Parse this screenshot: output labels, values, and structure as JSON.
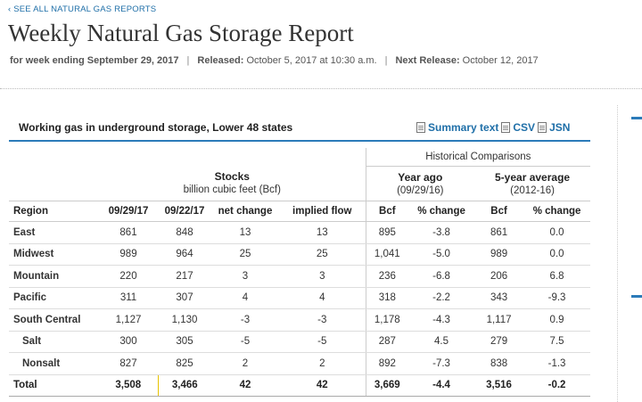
{
  "nav": {
    "back_link": "‹ SEE ALL NATURAL GAS REPORTS"
  },
  "page": {
    "title": "Weekly Natural Gas Storage Report",
    "week_label": "for week ending September 29, 2017",
    "sep": "|",
    "released_label": "Released:",
    "released_value": "October 5, 2017 at 10:30 a.m.",
    "next_label": "Next Release:",
    "next_value": "October 12, 2017"
  },
  "panel": {
    "title": "Working gas in underground storage, Lower 48 states",
    "links": [
      {
        "label": "Summary text",
        "icon": "document-icon"
      },
      {
        "label": "CSV",
        "icon": "document-icon"
      },
      {
        "label": "JSN",
        "icon": "document-icon"
      }
    ]
  },
  "table": {
    "historical_label": "Historical Comparisons",
    "stocks_title": "Stocks",
    "stocks_sub": "billion cubic feet (Bcf)",
    "year_ago_title": "Year ago",
    "year_ago_sub": "(09/29/16)",
    "five_year_title": "5-year average",
    "five_year_sub": "(2012-16)",
    "columns": [
      "Region",
      "09/29/17",
      "09/22/17",
      "net change",
      "implied flow",
      "Bcf",
      "% change",
      "Bcf",
      "% change"
    ],
    "rows": [
      {
        "region": "East",
        "c1": "861",
        "c2": "848",
        "net": "13",
        "flow": "13",
        "ya_bcf": "895",
        "ya_pct": "-3.8",
        "fy_bcf": "861",
        "fy_pct": "0.0"
      },
      {
        "region": "Midwest",
        "c1": "989",
        "c2": "964",
        "net": "25",
        "flow": "25",
        "ya_bcf": "1,041",
        "ya_pct": "-5.0",
        "fy_bcf": "989",
        "fy_pct": "0.0"
      },
      {
        "region": "Mountain",
        "c1": "220",
        "c2": "217",
        "net": "3",
        "flow": "3",
        "ya_bcf": "236",
        "ya_pct": "-6.8",
        "fy_bcf": "206",
        "fy_pct": "6.8"
      },
      {
        "region": "Pacific",
        "c1": "311",
        "c2": "307",
        "net": "4",
        "flow": "4",
        "ya_bcf": "318",
        "ya_pct": "-2.2",
        "fy_bcf": "343",
        "fy_pct": "-9.3"
      },
      {
        "region": "South Central",
        "c1": "1,127",
        "c2": "1,130",
        "net": "-3",
        "flow": "-3",
        "ya_bcf": "1,178",
        "ya_pct": "-4.3",
        "fy_bcf": "1,117",
        "fy_pct": "0.9"
      },
      {
        "region": "Salt",
        "c1": "300",
        "c2": "305",
        "net": "-5",
        "flow": "-5",
        "ya_bcf": "287",
        "ya_pct": "4.5",
        "fy_bcf": "279",
        "fy_pct": "7.5"
      },
      {
        "region": "Nonsalt",
        "c1": "827",
        "c2": "825",
        "net": "2",
        "flow": "2",
        "ya_bcf": "892",
        "ya_pct": "-7.3",
        "fy_bcf": "838",
        "fy_pct": "-1.3"
      },
      {
        "region": "Total",
        "c1": "3,508",
        "c2": "3,466",
        "net": "42",
        "flow": "42",
        "ya_bcf": "3,669",
        "ya_pct": "-4.4",
        "fy_bcf": "3,516",
        "fy_pct": "-0.2"
      }
    ]
  },
  "colors": {
    "link": "#1f6fa8",
    "accent": "#2b7bb9",
    "highlight_line": "#e6c200"
  }
}
